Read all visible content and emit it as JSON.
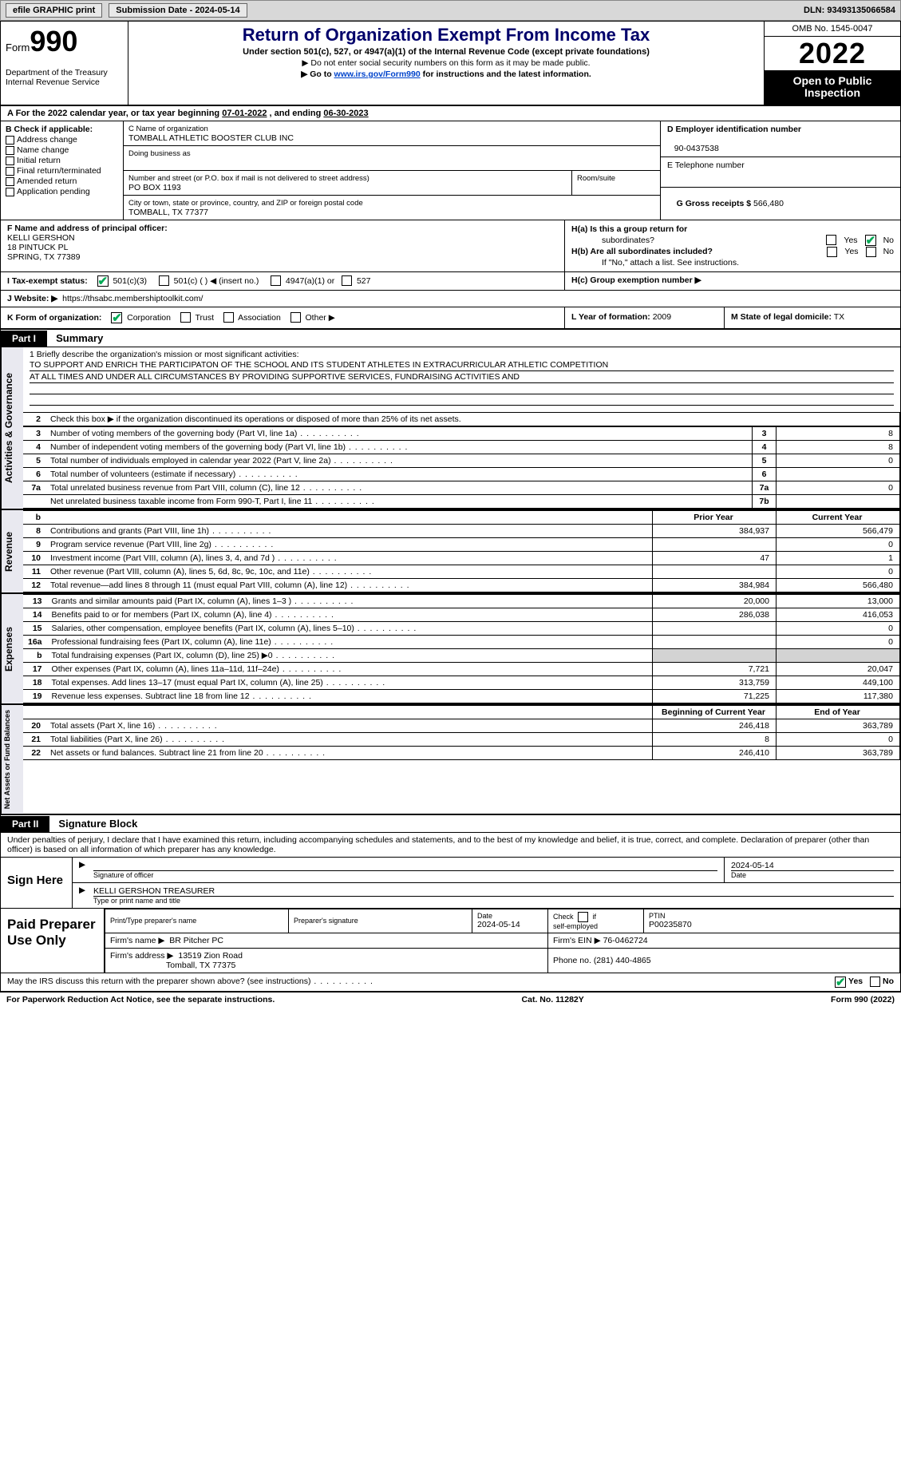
{
  "topbar": {
    "efile_label": "efile GRAPHIC print",
    "submission_label": "Submission Date - 2024-05-14",
    "dln_label": "DLN: 93493135066584"
  },
  "header": {
    "form_word": "Form",
    "form_num": "990",
    "title": "Return of Organization Exempt From Income Tax",
    "subtitle": "Under section 501(c), 527, or 4947(a)(1) of the Internal Revenue Code (except private foundations)",
    "note1": "▶ Do not enter social security numbers on this form as it may be made public.",
    "note2_pre": "▶ Go to ",
    "note2_link": "www.irs.gov/Form990",
    "note2_post": " for instructions and the latest information.",
    "dept1": "Department of the Treasury",
    "dept2": "Internal Revenue Service",
    "omb": "OMB No. 1545-0047",
    "year": "2022",
    "otp1": "Open to Public",
    "otp2": "Inspection"
  },
  "rowA": {
    "text_pre": "A For the 2022 calendar year, or tax year beginning ",
    "begin": "07-01-2022",
    "mid": "  , and ending ",
    "end": "06-30-2023"
  },
  "boxB": {
    "head": "B Check if applicable:",
    "opts": [
      "Address change",
      "Name change",
      "Initial return",
      "Final return/terminated",
      "Amended return",
      "Application pending"
    ]
  },
  "boxC": {
    "name_lab": "C Name of organization",
    "name": "TOMBALL ATHLETIC BOOSTER CLUB INC",
    "dba_lab": "Doing business as",
    "street_lab": "Number and street (or P.O. box if mail is not delivered to street address)",
    "room_lab": "Room/suite",
    "street": "PO BOX 1193",
    "city_lab": "City or town, state or province, country, and ZIP or foreign postal code",
    "city": "TOMBALL, TX  77377"
  },
  "boxD": {
    "lab": "D Employer identification number",
    "val": "90-0437538"
  },
  "boxE": {
    "lab": "E Telephone number",
    "val": ""
  },
  "boxG": {
    "lab": "G Gross receipts $",
    "val": "566,480"
  },
  "boxF": {
    "lab": "F  Name and address of principal officer:",
    "l1": "KELLI GERSHON",
    "l2": "18 PINTUCK PL",
    "l3": "SPRING, TX  77389"
  },
  "boxH": {
    "a_lab": "H(a)  Is this a group return for",
    "a_lab2": "subordinates?",
    "b_lab": "H(b)  Are all subordinates included?",
    "b_note": "If \"No,\" attach a list. See instructions.",
    "c_lab": "H(c)  Group exemption number ▶",
    "yes": "Yes",
    "no": "No"
  },
  "rowI": {
    "lab": "I    Tax-exempt status:",
    "o1": "501(c)(3)",
    "o2": "501(c) (  ) ◀ (insert no.)",
    "o3": "4947(a)(1) or",
    "o4": "527"
  },
  "rowJ": {
    "lab": "J   Website: ▶",
    "val": "https://thsabc.membershiptoolkit.com/"
  },
  "rowK": {
    "lab": "K Form of organization:",
    "o1": "Corporation",
    "o2": "Trust",
    "o3": "Association",
    "o4": "Other ▶"
  },
  "rowL": {
    "lab": "L Year of formation:",
    "val": "2009"
  },
  "rowM": {
    "lab": "M State of legal domicile:",
    "val": "TX"
  },
  "part1": {
    "tag": "Part I",
    "title": "Summary"
  },
  "mission": {
    "lab": "1   Briefly describe the organization's mission or most significant activities:",
    "line1": "TO SUPPORT AND ENRICH THE PARTICIPATON OF THE SCHOOL AND ITS STUDENT ATHLETES IN EXTRACURRICULAR ATHLETIC COMPETITION",
    "line2": "AT ALL TIMES AND UNDER ALL CIRCUMSTANCES BY PROVIDING SUPPORTIVE SERVICES, FUNDRAISING ACTIVITIES AND"
  },
  "sum": {
    "side1": "Activities & Governance",
    "side2": "Revenue",
    "side3": "Expenses",
    "side4": "Net Assets or Fund Balances",
    "l2": "Check this box ▶      if the organization discontinued its operations or disposed of more than 25% of its net assets.",
    "rows_ag": [
      {
        "n": "3",
        "d": "Number of voting members of the governing body (Part VI, line 1a)",
        "box": "3",
        "v": "8"
      },
      {
        "n": "4",
        "d": "Number of independent voting members of the governing body (Part VI, line 1b)",
        "box": "4",
        "v": "8"
      },
      {
        "n": "5",
        "d": "Total number of individuals employed in calendar year 2022 (Part V, line 2a)",
        "box": "5",
        "v": "0"
      },
      {
        "n": "6",
        "d": "Total number of volunteers (estimate if necessary)",
        "box": "6",
        "v": ""
      },
      {
        "n": "7a",
        "d": "Total unrelated business revenue from Part VIII, column (C), line 12",
        "box": "7a",
        "v": "0"
      },
      {
        "n": "",
        "d": "Net unrelated business taxable income from Form 990-T, Part I, line 11",
        "box": "7b",
        "v": ""
      }
    ],
    "col_prior": "Prior Year",
    "col_curr": "Current Year",
    "col_beg": "Beginning of Current Year",
    "col_end": "End of Year",
    "rows_rev": [
      {
        "n": "8",
        "d": "Contributions and grants (Part VIII, line 1h)",
        "p": "384,937",
        "c": "566,479"
      },
      {
        "n": "9",
        "d": "Program service revenue (Part VIII, line 2g)",
        "p": "",
        "c": "0"
      },
      {
        "n": "10",
        "d": "Investment income (Part VIII, column (A), lines 3, 4, and 7d )",
        "p": "47",
        "c": "1"
      },
      {
        "n": "11",
        "d": "Other revenue (Part VIII, column (A), lines 5, 6d, 8c, 9c, 10c, and 11e)",
        "p": "",
        "c": "0"
      },
      {
        "n": "12",
        "d": "Total revenue—add lines 8 through 11 (must equal Part VIII, column (A), line 12)",
        "p": "384,984",
        "c": "566,480"
      }
    ],
    "rows_exp": [
      {
        "n": "13",
        "d": "Grants and similar amounts paid (Part IX, column (A), lines 1–3 )",
        "p": "20,000",
        "c": "13,000"
      },
      {
        "n": "14",
        "d": "Benefits paid to or for members (Part IX, column (A), line 4)",
        "p": "286,038",
        "c": "416,053"
      },
      {
        "n": "15",
        "d": "Salaries, other compensation, employee benefits (Part IX, column (A), lines 5–10)",
        "p": "",
        "c": "0"
      },
      {
        "n": "16a",
        "d": "Professional fundraising fees (Part IX, column (A), line 11e)",
        "p": "",
        "c": "0"
      },
      {
        "n": "b",
        "d": "Total fundraising expenses (Part IX, column (D), line 25) ▶0",
        "p": "SHADE",
        "c": "SHADE"
      },
      {
        "n": "17",
        "d": "Other expenses (Part IX, column (A), lines 11a–11d, 11f–24e)",
        "p": "7,721",
        "c": "20,047"
      },
      {
        "n": "18",
        "d": "Total expenses. Add lines 13–17 (must equal Part IX, column (A), line 25)",
        "p": "313,759",
        "c": "449,100"
      },
      {
        "n": "19",
        "d": "Revenue less expenses. Subtract line 18 from line 12",
        "p": "71,225",
        "c": "117,380"
      }
    ],
    "rows_net": [
      {
        "n": "20",
        "d": "Total assets (Part X, line 16)",
        "p": "246,418",
        "c": "363,789"
      },
      {
        "n": "21",
        "d": "Total liabilities (Part X, line 26)",
        "p": "8",
        "c": "0"
      },
      {
        "n": "22",
        "d": "Net assets or fund balances. Subtract line 21 from line 20",
        "p": "246,410",
        "c": "363,789"
      }
    ]
  },
  "part2": {
    "tag": "Part II",
    "title": "Signature Block"
  },
  "sig": {
    "decl": "Under penalties of perjury, I declare that I have examined this return, including accompanying schedules and statements, and to the best of my knowledge and belief, it is true, correct, and complete. Declaration of preparer (other than officer) is based on all information of which preparer has any knowledge.",
    "sign_here": "Sign Here",
    "sig_lab": "Signature of officer",
    "date_val": "2024-05-14",
    "date_lab": "Date",
    "name_val": "KELLI GERSHON  TREASURER",
    "name_lab": "Type or print name and title"
  },
  "prep": {
    "label": "Paid Preparer Use Only",
    "h1": "Print/Type preparer's name",
    "h2": "Preparer's signature",
    "h3": "Date",
    "h3v": "2024-05-14",
    "h4": "Check        if self-employed",
    "h5": "PTIN",
    "h5v": "P00235870",
    "firm_lab": "Firm's name    ▶",
    "firm_val": "BR Pitcher PC",
    "ein_lab": "Firm's EIN ▶",
    "ein_val": "76-0462724",
    "addr_lab": "Firm's address ▶",
    "addr_val1": "13519 Zion Road",
    "addr_val2": "Tomball, TX  77375",
    "phone_lab": "Phone no.",
    "phone_val": "(281) 440-4865"
  },
  "lastrow": {
    "q": "May the IRS discuss this return with the preparer shown above? (see instructions)",
    "yes": "Yes",
    "no": "No"
  },
  "footer": {
    "left": "For Paperwork Reduction Act Notice, see the separate instructions.",
    "mid": "Cat. No. 11282Y",
    "right": "Form 990 (2022)"
  },
  "style": {
    "accent": "#00006a",
    "checkmark": "#0a5",
    "shade": "#d3d3d3",
    "sidebg": "#e9e9f0"
  }
}
